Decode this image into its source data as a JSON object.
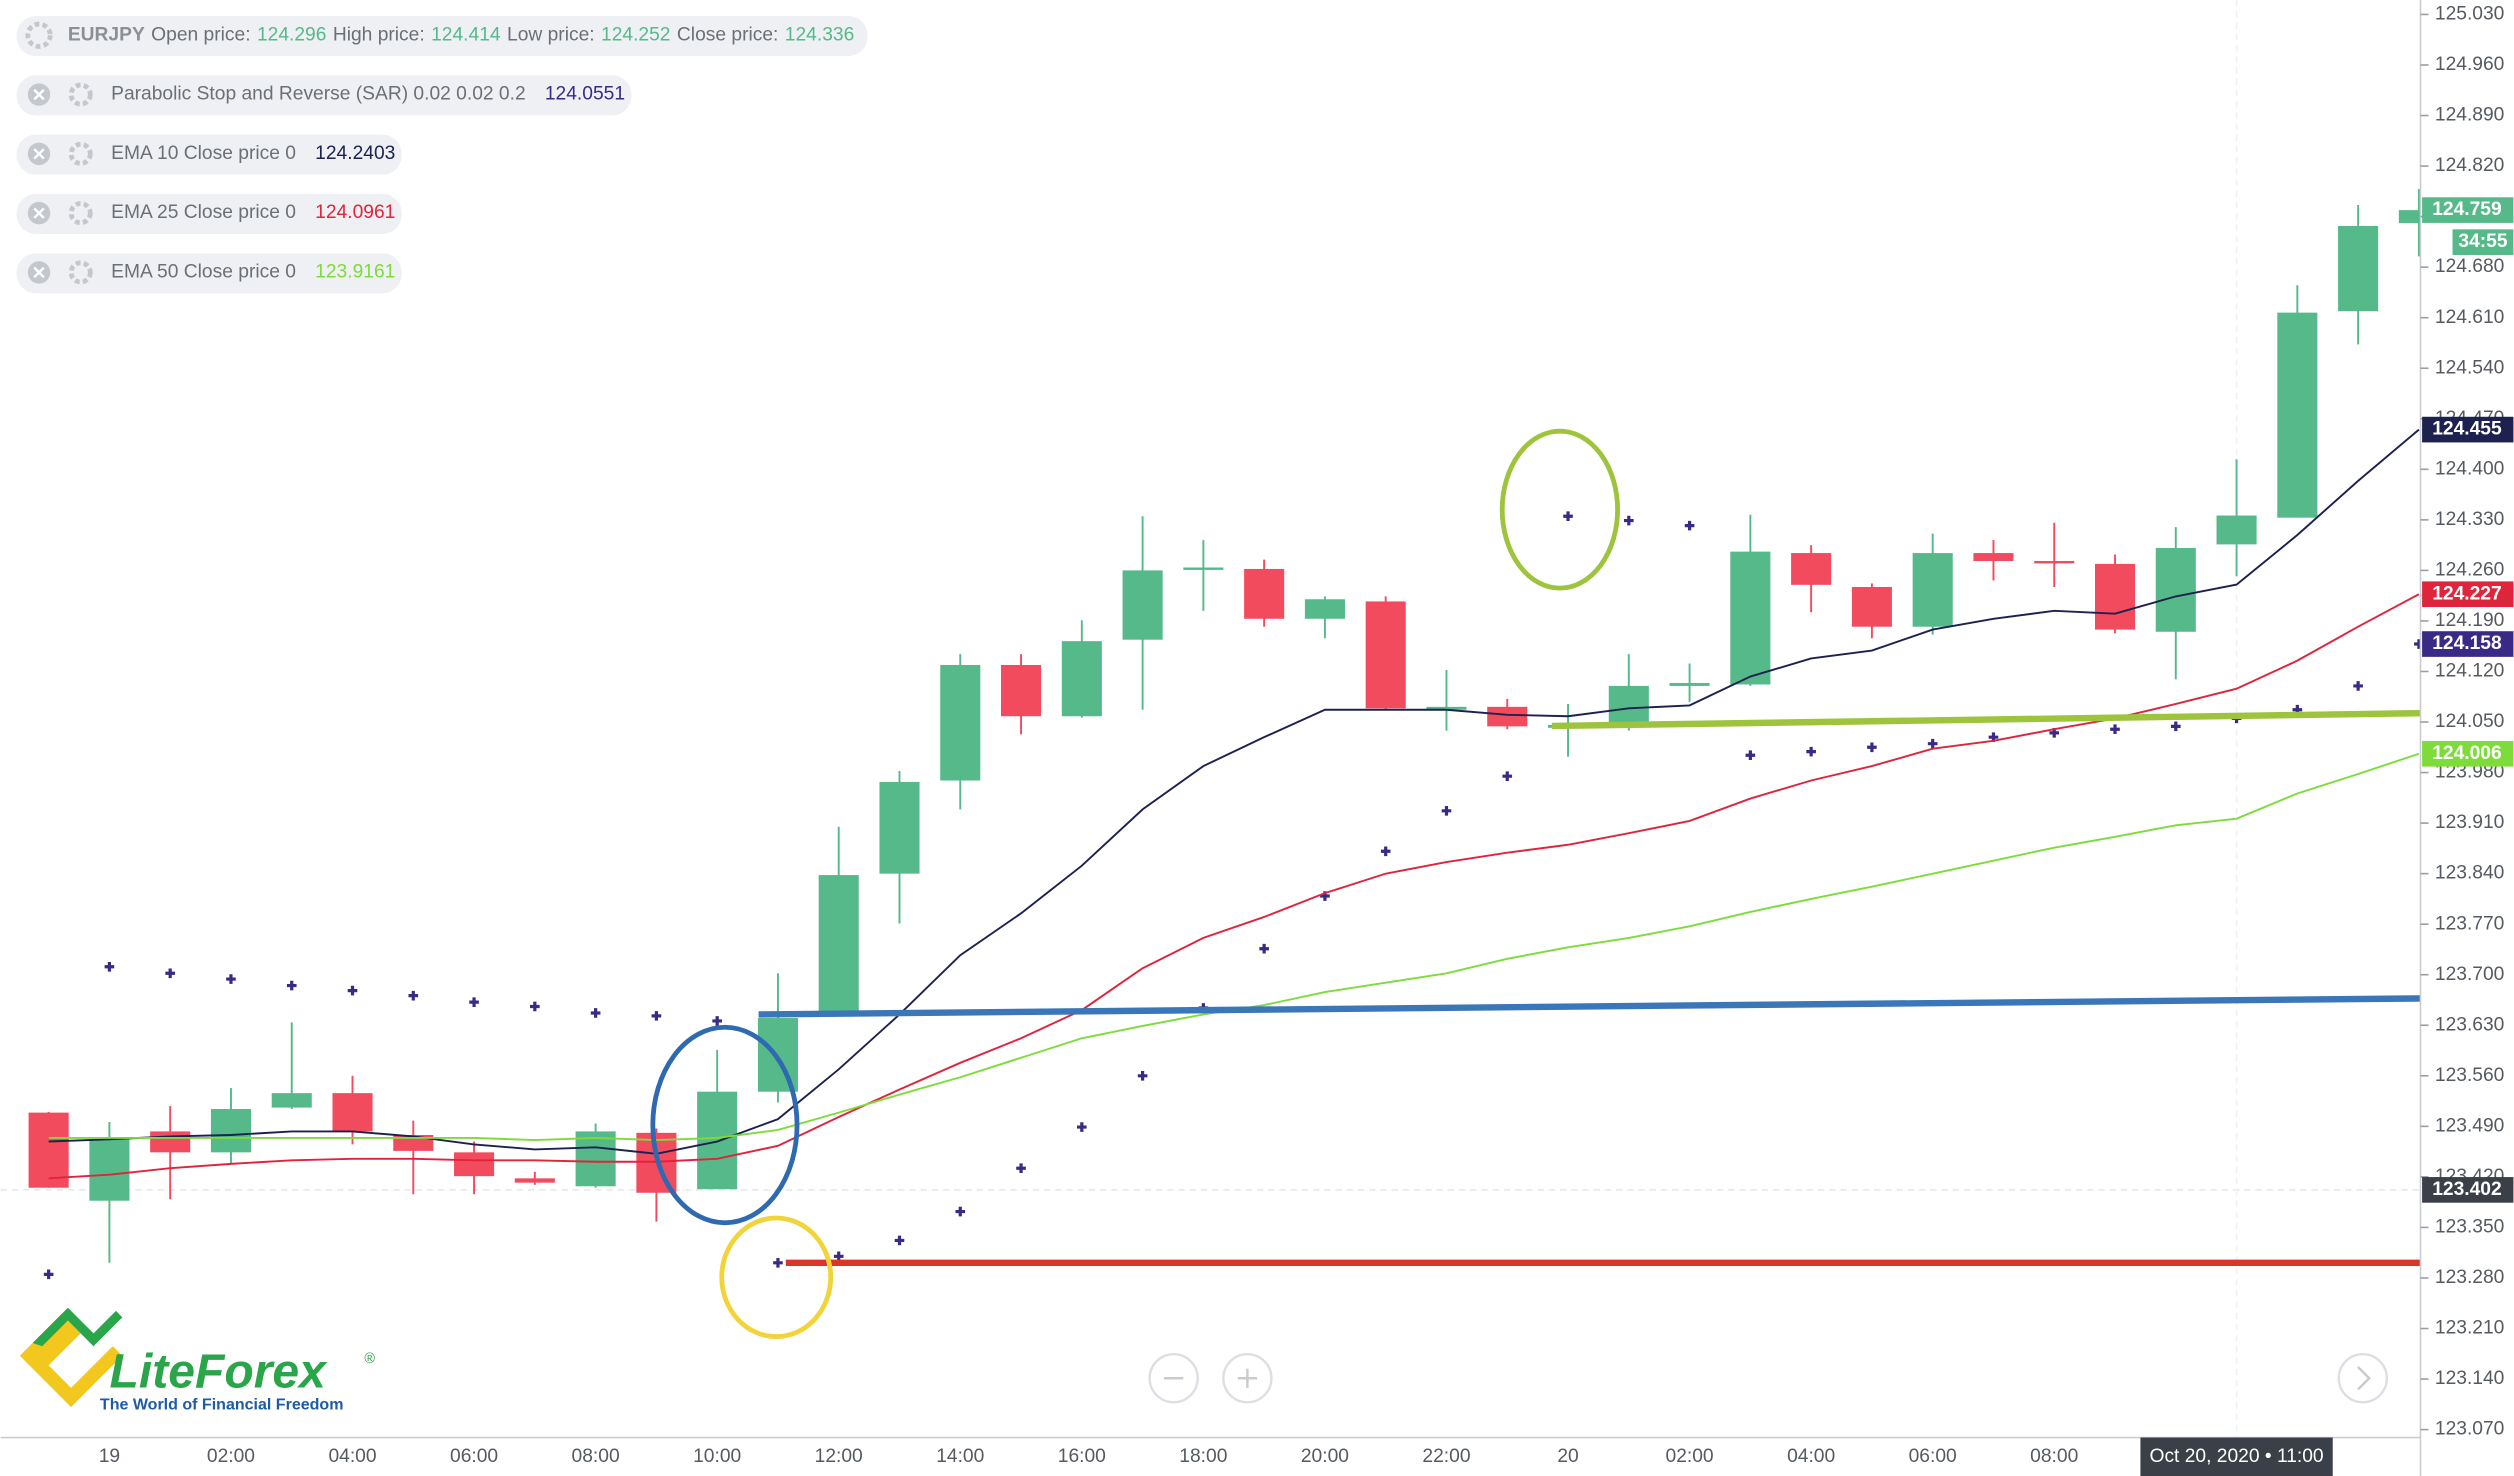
{
  "chart_data": {
    "type": "candlestick",
    "symbol": "EURJPY",
    "ohlc_labels": [
      "Open price:",
      "High price:",
      "Low price:",
      "Close price:"
    ],
    "categories": [
      null,
      "19",
      null,
      "02:00",
      null,
      "04:00",
      null,
      "06:00",
      null,
      "08:00",
      null,
      "10:00",
      null,
      "12:00",
      null,
      "14:00",
      null,
      "16:00",
      null,
      "18:00",
      null,
      "20:00",
      null,
      "22:00",
      null,
      "20",
      null,
      "02:00",
      null,
      "04:00",
      null,
      "06:00",
      null,
      "08:00",
      null,
      null,
      null,
      null,
      null,
      null
    ],
    "open": [
      123.509,
      123.387,
      123.483,
      123.454,
      123.516,
      123.536,
      123.478,
      123.454,
      123.418,
      123.407,
      123.481,
      123.403,
      123.538,
      123.647,
      123.84,
      123.969,
      124.129,
      124.058,
      124.164,
      124.262,
      124.262,
      124.193,
      124.217,
      124.067,
      124.071,
      124.042,
      124.046,
      124.1,
      124.102,
      124.284,
      124.237,
      124.182,
      124.284,
      124.273,
      124.269,
      124.175,
      124.296,
      124.333,
      124.619,
      124.741
    ],
    "high": [
      123.51,
      123.496,
      123.518,
      123.543,
      123.634,
      123.56,
      123.498,
      123.469,
      123.427,
      123.494,
      123.487,
      123.596,
      123.702,
      123.905,
      123.982,
      124.144,
      124.144,
      124.191,
      124.335,
      124.302,
      124.275,
      124.224,
      124.224,
      124.122,
      124.082,
      124.075,
      124.144,
      124.131,
      124.337,
      124.295,
      124.242,
      124.311,
      124.302,
      124.326,
      124.282,
      124.32,
      124.414,
      124.655,
      124.766,
      124.788
    ],
    "low": [
      123.405,
      123.301,
      123.389,
      123.438,
      123.514,
      123.465,
      123.396,
      123.396,
      123.409,
      123.405,
      123.358,
      123.403,
      123.523,
      123.647,
      123.771,
      123.929,
      124.033,
      124.056,
      124.067,
      124.204,
      124.182,
      124.166,
      124.067,
      124.038,
      124.04,
      124.002,
      124.038,
      124.078,
      124.1,
      124.202,
      124.166,
      124.171,
      124.246,
      124.237,
      124.173,
      124.109,
      124.252,
      124.333,
      124.573,
      124.695
    ],
    "close": [
      123.405,
      123.472,
      123.454,
      123.514,
      123.536,
      123.483,
      123.456,
      123.421,
      123.412,
      123.483,
      123.398,
      123.538,
      123.64,
      123.838,
      123.967,
      124.129,
      124.058,
      124.162,
      124.26,
      124.264,
      124.193,
      124.22,
      124.069,
      124.071,
      124.044,
      124.046,
      124.1,
      124.104,
      124.286,
      124.24,
      124.182,
      124.284,
      124.273,
      124.271,
      124.178,
      124.291,
      124.336,
      124.617,
      124.737,
      124.759
    ],
    "up_color": "#55b98a",
    "down_color": "#f24b5e",
    "series": [
      {
        "name": "Parabolic Stop and Reverse (SAR) 0.02 0.02 0.2",
        "type": "scatter",
        "color": "#3a2a86",
        "values": [
          123.285,
          123.711,
          123.702,
          123.694,
          123.685,
          123.678,
          123.671,
          123.662,
          123.656,
          123.647,
          123.643,
          123.636,
          123.301,
          123.31,
          123.332,
          123.372,
          123.432,
          123.489,
          123.56,
          123.654,
          123.736,
          123.809,
          123.871,
          123.927,
          123.975,
          124.335,
          124.329,
          124.322,
          124.004,
          124.009,
          124.015,
          124.02,
          124.029,
          124.035,
          124.04,
          124.044,
          124.0551,
          124.067,
          124.1,
          124.158
        ]
      },
      {
        "name": "EMA 10 Close price 0",
        "type": "line",
        "color": "#1d2150",
        "values": [
          123.469,
          123.472,
          123.476,
          123.478,
          123.483,
          123.483,
          123.476,
          123.465,
          123.458,
          123.461,
          123.452,
          123.469,
          123.5,
          123.569,
          123.645,
          123.727,
          123.785,
          123.851,
          123.929,
          123.989,
          124.029,
          124.067,
          124.067,
          124.067,
          124.06,
          124.058,
          124.069,
          124.073,
          124.113,
          124.138,
          124.149,
          124.178,
          124.193,
          124.204,
          124.2,
          124.224,
          124.2403,
          124.309,
          124.384,
          124.455
        ]
      },
      {
        "name": "EMA 25 Close price 0",
        "type": "line",
        "color": "#e0243c",
        "values": [
          123.418,
          123.423,
          123.432,
          123.438,
          123.443,
          123.445,
          123.445,
          123.443,
          123.443,
          123.441,
          123.441,
          123.445,
          123.463,
          123.503,
          123.541,
          123.578,
          123.612,
          123.651,
          123.709,
          123.751,
          123.78,
          123.813,
          123.84,
          123.856,
          123.869,
          123.88,
          123.896,
          123.913,
          123.944,
          123.969,
          123.989,
          124.013,
          124.024,
          124.04,
          124.055,
          124.075,
          124.0961,
          124.135,
          124.182,
          124.227
        ]
      },
      {
        "name": "EMA 50 Close price 0",
        "type": "line",
        "color": "#7ddc3a",
        "values": [
          123.474,
          123.474,
          123.474,
          123.474,
          123.474,
          123.474,
          123.474,
          123.474,
          123.471,
          123.474,
          123.471,
          123.474,
          123.485,
          123.509,
          123.534,
          123.558,
          123.585,
          123.612,
          123.629,
          123.645,
          123.658,
          123.676,
          123.689,
          123.702,
          123.722,
          123.738,
          123.751,
          123.767,
          123.787,
          123.805,
          123.822,
          123.84,
          123.858,
          123.876,
          123.891,
          123.907,
          123.9161,
          123.951,
          123.978,
          124.006
        ]
      }
    ],
    "ylim": [
      123.059,
      125.05
    ],
    "yticks": [
      {
        "value": 125.03,
        "label": "125.030"
      },
      {
        "value": 124.96,
        "label": "124.960"
      },
      {
        "value": 124.89,
        "label": "124.890"
      },
      {
        "value": 124.82,
        "label": "124.820"
      },
      {
        "value": 124.75,
        "label": "124.750"
      },
      {
        "value": 124.68,
        "label": "124.680"
      },
      {
        "value": 124.61,
        "label": "124.610"
      },
      {
        "value": 124.54,
        "label": "124.540"
      },
      {
        "value": 124.47,
        "label": "124.470"
      },
      {
        "value": 124.4,
        "label": "124.400"
      },
      {
        "value": 124.33,
        "label": "124.330"
      },
      {
        "value": 124.26,
        "label": "124.260"
      },
      {
        "value": 124.19,
        "label": "124.190"
      },
      {
        "value": 124.12,
        "label": "124.120"
      },
      {
        "value": 124.05,
        "label": "124.050"
      },
      {
        "value": 123.98,
        "label": "123.980"
      },
      {
        "value": 123.91,
        "label": "123.910"
      },
      {
        "value": 123.84,
        "label": "123.840"
      },
      {
        "value": 123.77,
        "label": "123.770"
      },
      {
        "value": 123.7,
        "label": "123.700"
      },
      {
        "value": 123.63,
        "label": "123.630"
      },
      {
        "value": 123.56,
        "label": "123.560"
      },
      {
        "value": 123.49,
        "label": "123.490"
      },
      {
        "value": 123.42,
        "label": "123.420"
      },
      {
        "value": 123.35,
        "label": "123.350"
      },
      {
        "value": 123.28,
        "label": "123.280"
      },
      {
        "value": 123.21,
        "label": "123.210"
      },
      {
        "value": 123.14,
        "label": "123.140"
      },
      {
        "value": 123.07,
        "label": "123.070"
      }
    ],
    "crosshair": {
      "x": 36,
      "label": "Oct 20, 2020 • 11:00",
      "price": 123.402
    },
    "countdown": "34:55"
  },
  "logo": {
    "name": "LiteForex",
    "mark": "®",
    "tagline": "The World of Financial Freedom"
  }
}
